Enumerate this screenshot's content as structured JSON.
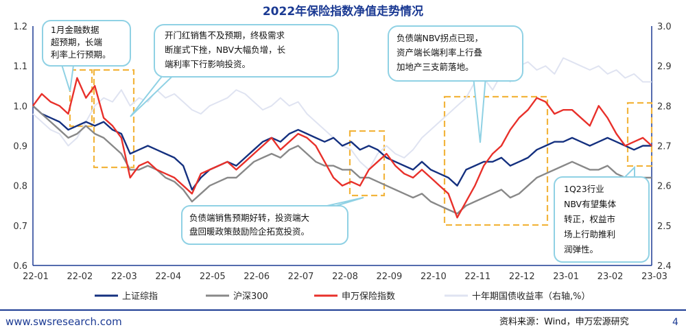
{
  "chart_data": {
    "type": "line",
    "title": "2022年保险指数净值走势情况",
    "xlabel": "",
    "ylabel": "",
    "x_ticks": [
      "22-01",
      "22-02",
      "22-03",
      "22-04",
      "22-05",
      "22-06",
      "22-07",
      "22-08",
      "22-09",
      "22-10",
      "22-11",
      "22-12",
      "23-01",
      "23-02",
      "23-03"
    ],
    "ylim": [
      0.6,
      1.2
    ],
    "y_ticks": [
      "0.6",
      "0.7",
      "0.8",
      "0.9",
      "1.0",
      "1.1",
      "1.2"
    ],
    "y2lim": [
      2.4,
      3.0
    ],
    "y2_ticks": [
      "2.4",
      "2.5",
      "2.6",
      "2.7",
      "2.8",
      "2.9",
      "3.0"
    ],
    "grid": false,
    "legend_position": "bottom",
    "series": [
      {
        "name": "上证综指",
        "axis": "left",
        "color": "#14307f",
        "x": [
          0,
          0.2,
          0.4,
          0.6,
          0.8,
          1.0,
          1.2,
          1.4,
          1.6,
          1.8,
          2.0,
          2.2,
          2.4,
          2.6,
          2.8,
          3.0,
          3.2,
          3.4,
          3.6,
          3.8,
          4.0,
          4.2,
          4.4,
          4.6,
          4.8,
          5.0,
          5.2,
          5.4,
          5.6,
          5.8,
          6.0,
          6.2,
          6.4,
          6.6,
          6.8,
          7.0,
          7.2,
          7.4,
          7.6,
          7.8,
          8.0,
          8.2,
          8.4,
          8.6,
          8.8,
          9.0,
          9.2,
          9.4,
          9.6,
          9.8,
          10.0,
          10.2,
          10.4,
          10.6,
          10.8,
          11.0,
          11.2,
          11.4,
          11.6,
          11.8,
          12.0,
          12.2,
          12.4,
          12.6,
          12.8,
          13.0,
          13.2,
          13.4,
          13.6,
          13.8,
          14.0
        ],
        "values": [
          1.0,
          0.98,
          0.97,
          0.96,
          0.94,
          0.95,
          0.96,
          0.95,
          0.96,
          0.94,
          0.93,
          0.88,
          0.89,
          0.9,
          0.89,
          0.88,
          0.87,
          0.85,
          0.79,
          0.82,
          0.84,
          0.85,
          0.86,
          0.85,
          0.87,
          0.89,
          0.91,
          0.92,
          0.91,
          0.93,
          0.94,
          0.93,
          0.92,
          0.91,
          0.92,
          0.9,
          0.91,
          0.89,
          0.9,
          0.89,
          0.87,
          0.86,
          0.85,
          0.84,
          0.86,
          0.84,
          0.83,
          0.82,
          0.8,
          0.84,
          0.85,
          0.86,
          0.86,
          0.87,
          0.85,
          0.86,
          0.87,
          0.89,
          0.9,
          0.91,
          0.91,
          0.92,
          0.91,
          0.9,
          0.91,
          0.92,
          0.91,
          0.9,
          0.89,
          0.9,
          0.9
        ]
      },
      {
        "name": "沪深300",
        "axis": "left",
        "color": "#888888",
        "x": [
          0,
          0.2,
          0.4,
          0.6,
          0.8,
          1.0,
          1.2,
          1.4,
          1.6,
          1.8,
          2.0,
          2.2,
          2.4,
          2.6,
          2.8,
          3.0,
          3.2,
          3.4,
          3.6,
          3.8,
          4.0,
          4.2,
          4.4,
          4.6,
          4.8,
          5.0,
          5.2,
          5.4,
          5.6,
          5.8,
          6.0,
          6.2,
          6.4,
          6.6,
          6.8,
          7.0,
          7.2,
          7.4,
          7.6,
          7.8,
          8.0,
          8.2,
          8.4,
          8.6,
          8.8,
          9.0,
          9.2,
          9.4,
          9.6,
          9.8,
          10.0,
          10.2,
          10.4,
          10.6,
          10.8,
          11.0,
          11.2,
          11.4,
          11.6,
          11.8,
          12.0,
          12.2,
          12.4,
          12.6,
          12.8,
          13.0,
          13.2,
          13.4,
          13.6,
          13.8,
          14.0
        ],
        "values": [
          1.0,
          0.98,
          0.96,
          0.94,
          0.92,
          0.93,
          0.95,
          0.93,
          0.92,
          0.9,
          0.88,
          0.84,
          0.84,
          0.85,
          0.84,
          0.82,
          0.81,
          0.79,
          0.76,
          0.78,
          0.8,
          0.81,
          0.82,
          0.82,
          0.84,
          0.86,
          0.87,
          0.88,
          0.87,
          0.89,
          0.9,
          0.88,
          0.86,
          0.85,
          0.85,
          0.84,
          0.84,
          0.82,
          0.82,
          0.81,
          0.8,
          0.79,
          0.78,
          0.77,
          0.78,
          0.76,
          0.75,
          0.74,
          0.73,
          0.75,
          0.76,
          0.77,
          0.78,
          0.79,
          0.77,
          0.78,
          0.8,
          0.82,
          0.83,
          0.84,
          0.85,
          0.86,
          0.85,
          0.84,
          0.84,
          0.85,
          0.83,
          0.82,
          0.81,
          0.82,
          0.82
        ]
      },
      {
        "name": "申万保险指数",
        "axis": "left",
        "color": "#e8302a",
        "x": [
          0,
          0.2,
          0.4,
          0.6,
          0.8,
          1.0,
          1.2,
          1.4,
          1.6,
          1.8,
          2.0,
          2.2,
          2.4,
          2.6,
          2.8,
          3.0,
          3.2,
          3.4,
          3.6,
          3.8,
          4.0,
          4.2,
          4.4,
          4.6,
          4.8,
          5.0,
          5.2,
          5.4,
          5.6,
          5.8,
          6.0,
          6.2,
          6.4,
          6.6,
          6.8,
          7.0,
          7.2,
          7.4,
          7.6,
          7.8,
          8.0,
          8.2,
          8.4,
          8.6,
          8.8,
          9.0,
          9.2,
          9.4,
          9.6,
          9.8,
          10.0,
          10.2,
          10.4,
          10.6,
          10.8,
          11.0,
          11.2,
          11.4,
          11.6,
          11.8,
          12.0,
          12.2,
          12.4,
          12.6,
          12.8,
          13.0,
          13.2,
          13.4,
          13.6,
          13.8,
          14.0
        ],
        "values": [
          1.0,
          1.03,
          1.01,
          1.0,
          0.98,
          1.07,
          1.02,
          1.05,
          0.97,
          0.95,
          0.92,
          0.82,
          0.85,
          0.86,
          0.84,
          0.83,
          0.82,
          0.8,
          0.78,
          0.83,
          0.84,
          0.85,
          0.86,
          0.84,
          0.86,
          0.88,
          0.9,
          0.92,
          0.89,
          0.91,
          0.93,
          0.92,
          0.9,
          0.86,
          0.82,
          0.8,
          0.81,
          0.8,
          0.84,
          0.86,
          0.88,
          0.85,
          0.83,
          0.82,
          0.84,
          0.82,
          0.8,
          0.78,
          0.72,
          0.76,
          0.8,
          0.85,
          0.88,
          0.9,
          0.94,
          0.97,
          0.99,
          1.02,
          1.01,
          0.98,
          0.99,
          0.99,
          0.97,
          0.95,
          1.0,
          0.97,
          0.93,
          0.9,
          0.91,
          0.92,
          0.9
        ]
      },
      {
        "name": "十年期国债收益率（右轴,%）",
        "axis": "right",
        "color": "#dfe3f1",
        "x": [
          0,
          0.2,
          0.4,
          0.6,
          0.8,
          1.0,
          1.2,
          1.4,
          1.6,
          1.8,
          2.0,
          2.2,
          2.4,
          2.6,
          2.8,
          3.0,
          3.2,
          3.4,
          3.6,
          3.8,
          4.0,
          4.2,
          4.4,
          4.6,
          4.8,
          5.0,
          5.2,
          5.4,
          5.6,
          5.8,
          6.0,
          6.2,
          6.4,
          6.6,
          6.8,
          7.0,
          7.2,
          7.4,
          7.6,
          7.8,
          8.0,
          8.2,
          8.4,
          8.6,
          8.8,
          9.0,
          9.2,
          9.4,
          9.6,
          9.8,
          10.0,
          10.2,
          10.4,
          10.6,
          10.8,
          11.0,
          11.2,
          11.4,
          11.6,
          11.8,
          12.0,
          12.2,
          12.4,
          12.6,
          12.8,
          13.0,
          13.2,
          13.4,
          13.6,
          13.8,
          14.0
        ],
        "values": [
          2.78,
          2.76,
          2.74,
          2.73,
          2.7,
          2.72,
          2.76,
          2.8,
          2.82,
          2.81,
          2.84,
          2.8,
          2.82,
          2.81,
          2.84,
          2.82,
          2.83,
          2.81,
          2.79,
          2.78,
          2.8,
          2.81,
          2.82,
          2.84,
          2.83,
          2.81,
          2.79,
          2.8,
          2.82,
          2.8,
          2.81,
          2.78,
          2.76,
          2.74,
          2.72,
          2.7,
          2.69,
          2.66,
          2.64,
          2.68,
          2.7,
          2.68,
          2.67,
          2.69,
          2.72,
          2.74,
          2.76,
          2.78,
          2.8,
          2.82,
          2.86,
          2.87,
          2.84,
          2.88,
          2.86,
          2.9,
          2.91,
          2.89,
          2.9,
          2.88,
          2.92,
          2.91,
          2.9,
          2.89,
          2.9,
          2.88,
          2.89,
          2.87,
          2.88,
          2.86,
          2.86
        ]
      }
    ],
    "annotations": [
      {
        "lines": [
          "1月金融数据",
          "超预期，长端",
          "利率上行预期。"
        ]
      },
      {
        "lines": [
          "开门红销售不及预期，终极需求",
          "断崖式下挫，NBV大幅负增，长",
          "端利率下行影响投资。"
        ]
      },
      {
        "lines": [
          "负债端NBV拐点已现，",
          "资产端长端利率上行叠",
          "加地产三支箭落地。"
        ]
      },
      {
        "lines": [
          "负债端销售预期好转，投资端大",
          "盘回暖政策鼓励险企拓宽投资。"
        ]
      },
      {
        "lines": [
          "1Q23行业",
          "NBV有望集体",
          "转正，权益市",
          "场上行助推利",
          "润弹性。"
        ]
      }
    ]
  },
  "footer": {
    "website": "www.swsresearch.com",
    "source": "资料来源：Wind，申万宏源研究",
    "page_number": "4"
  }
}
